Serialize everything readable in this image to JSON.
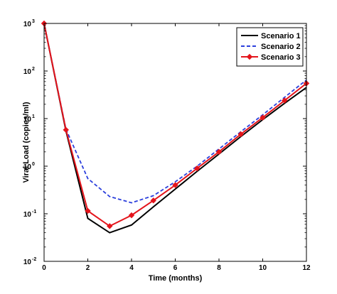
{
  "chart_data": {
    "type": "line",
    "title": "",
    "xlabel": "Time (months)",
    "ylabel": "Viral Load (copies/ml)",
    "xlim": [
      0,
      12
    ],
    "ylim": [
      0.01,
      1000
    ],
    "yscale": "log",
    "x_ticks": [
      0,
      2,
      4,
      6,
      8,
      10,
      12
    ],
    "y_ticks": [
      {
        "value": 0.01,
        "base": "10",
        "exp": "-2"
      },
      {
        "value": 0.1,
        "base": "10",
        "exp": "-1"
      },
      {
        "value": 1,
        "base": "10",
        "exp": "0"
      },
      {
        "value": 10,
        "base": "10",
        "exp": "1"
      },
      {
        "value": 100,
        "base": "10",
        "exp": "2"
      },
      {
        "value": 1000,
        "base": "10",
        "exp": "3"
      }
    ],
    "grid": false,
    "legend_position": "top-right",
    "series": [
      {
        "name": "Scenario 1",
        "color": "#000000",
        "style": "solid",
        "marker": "none",
        "x": [
          0,
          1,
          2,
          3,
          4,
          5,
          6,
          7,
          8,
          9,
          10,
          11,
          12
        ],
        "y": [
          1000,
          5.5,
          0.08,
          0.04,
          0.058,
          0.14,
          0.33,
          0.78,
          1.8,
          4.2,
          9.5,
          21,
          45
        ]
      },
      {
        "name": "Scenario 2",
        "color": "#2b3fdc",
        "style": "dashed",
        "marker": "none",
        "x": [
          0,
          1,
          2,
          3,
          4,
          5,
          6,
          7,
          8,
          9,
          10,
          11,
          12
        ],
        "y": [
          1000,
          6.0,
          0.55,
          0.23,
          0.17,
          0.24,
          0.47,
          1.0,
          2.3,
          5.3,
          12,
          28,
          65
        ]
      },
      {
        "name": "Scenario 3",
        "color": "#e4141b",
        "style": "solid",
        "marker": "diamond",
        "x": [
          0,
          1,
          2,
          3,
          4,
          5,
          6,
          7,
          8,
          9,
          10,
          11,
          12
        ],
        "y": [
          1000,
          5.8,
          0.115,
          0.055,
          0.093,
          0.19,
          0.4,
          0.9,
          2.0,
          4.7,
          10.5,
          24,
          55
        ]
      }
    ]
  }
}
